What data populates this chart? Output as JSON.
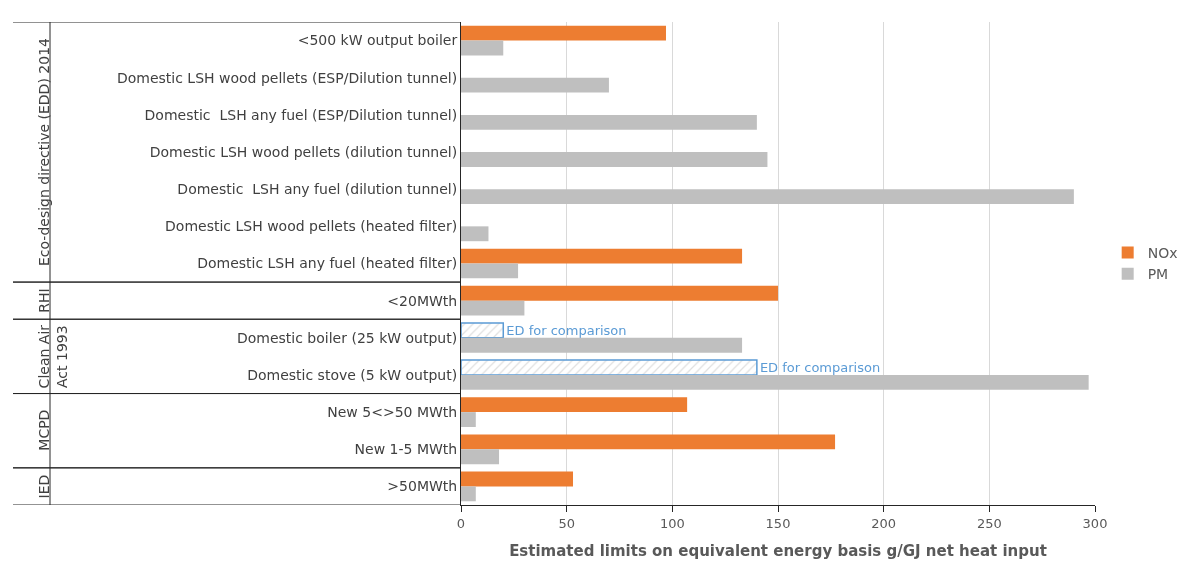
{
  "chart_data": {
    "type": "bar",
    "orientation": "horizontal",
    "xlabel": "Estimated limits on equivalent energy basis g/GJ net heat input",
    "categories": [
      "<500 kW output boiler",
      "Domestic LSH wood pellets (ESP/Dilution tunnel)",
      "Domestic  LSH any fuel (ESP/Dilution tunnel)",
      "Domestic LSH wood pellets (dilution tunnel)",
      "Domestic  LSH any fuel (dilution tunnel)",
      "Domestic LSH wood pellets (heated filter)",
      "Domestic LSH any fuel (heated filter)",
      "<20MWth",
      "Domestic boiler (25 kW output)",
      "Domestic stove (5 kW output)",
      "New 5<>50 MWth",
      "New 1-5 MWth",
      ">50MWth"
    ],
    "series": [
      {
        "name": "NOx",
        "color": "#ed7d31",
        "values": [
          97,
          null,
          null,
          null,
          null,
          null,
          133,
          150,
          null,
          null,
          107,
          177,
          53
        ]
      },
      {
        "name": "ED for comparison",
        "color": "#5b9bd5",
        "values": [
          null,
          null,
          null,
          null,
          null,
          null,
          null,
          null,
          20,
          140,
          null,
          null,
          null
        ]
      },
      {
        "name": "PM",
        "color": "#bfbfbf",
        "values": [
          20,
          70,
          140,
          145,
          290,
          13,
          27,
          30,
          133,
          297,
          7,
          18,
          7
        ]
      }
    ],
    "annotations": [
      "Eco-design directive (EDD) 2014",
      "RHI",
      "Clean Air\nAct 1993",
      "MCPD",
      "IED"
    ],
    "xlim": [
      0,
      300
    ],
    "xticks": [
      0,
      50,
      100,
      150,
      200,
      250,
      300
    ],
    "grid": "x",
    "legend": "right"
  }
}
